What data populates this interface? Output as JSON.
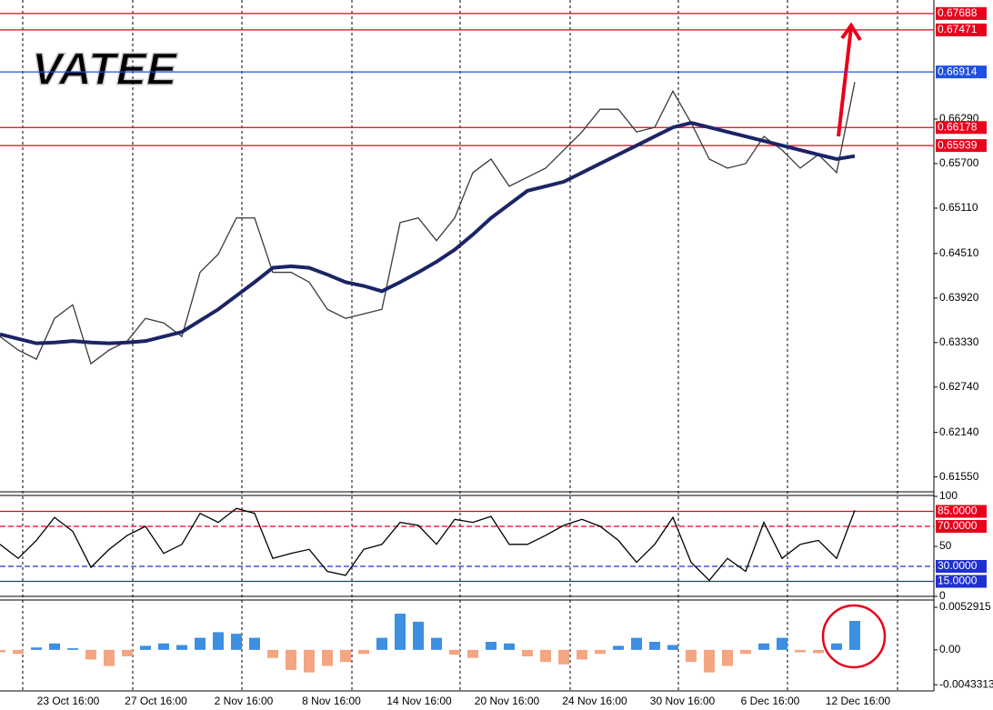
{
  "watermark": "VATEE",
  "chart_data": [
    {
      "type": "line",
      "series": [
        {
          "color": "#3a3a3a",
          "values": [
            0.6341,
            0.6323,
            0.6311,
            0.6365,
            0.6383,
            0.6305,
            0.6323,
            0.6335,
            0.6365,
            0.6359,
            0.6341,
            0.6426,
            0.645,
            0.6498,
            0.6498,
            0.6426,
            0.6426,
            0.6413,
            0.6377,
            0.6365,
            0.6371,
            0.6377,
            0.6492,
            0.6498,
            0.6468,
            0.6498,
            0.6558,
            0.6576,
            0.654,
            0.6552,
            0.6564,
            0.6588,
            0.6612,
            0.6642,
            0.6642,
            0.6612,
            0.6618,
            0.6666,
            0.6624,
            0.6576,
            0.6564,
            0.657,
            0.6606,
            0.6588,
            0.6564,
            0.6582,
            0.6558,
            0.6678
          ]
        },
        {
          "color": "#1c2466",
          "values": [
            0.6344,
            0.6338,
            0.6332,
            0.6333,
            0.6335,
            0.6333,
            0.6332,
            0.6333,
            0.6335,
            0.6341,
            0.6347,
            0.6362,
            0.6377,
            0.6395,
            0.6413,
            0.6432,
            0.6434,
            0.6432,
            0.6423,
            0.6413,
            0.6408,
            0.6401,
            0.6413,
            0.6426,
            0.644,
            0.6456,
            0.6476,
            0.6498,
            0.6516,
            0.6534,
            0.654,
            0.6546,
            0.6558,
            0.657,
            0.6582,
            0.6594,
            0.6606,
            0.6618,
            0.6624,
            0.6618,
            0.6612,
            0.6606,
            0.66,
            0.6594,
            0.6588,
            0.6582,
            0.6576,
            0.658
          ]
        }
      ],
      "ylim": [
        0.61365,
        0.67867
      ],
      "yticks": [
        {
          "value": 0.6629,
          "label": "0.66290"
        },
        {
          "value": 0.657,
          "label": "0.65700"
        },
        {
          "value": 0.6511,
          "label": "0.65110"
        },
        {
          "value": 0.6451,
          "label": "0.64510"
        },
        {
          "value": 0.6392,
          "label": "0.63920"
        },
        {
          "value": 0.6333,
          "label": "0.63330"
        },
        {
          "value": 0.6274,
          "label": "0.62740"
        },
        {
          "value": 0.6214,
          "label": "0.62140"
        },
        {
          "value": 0.6155,
          "label": "0.61550"
        }
      ],
      "levels": [
        {
          "value": 0.67688,
          "color": "#e8001c",
          "dashed": false
        },
        {
          "value": 0.67471,
          "color": "#e8001c",
          "dashed": false
        },
        {
          "value": 0.66914,
          "color": "#2050e0",
          "dashed": false
        },
        {
          "value": 0.66178,
          "color": "#e8001c",
          "dashed": false
        },
        {
          "value": 0.65939,
          "color": "#e8001c",
          "dashed": false
        }
      ]
    },
    {
      "type": "line",
      "series": [
        {
          "color": "#000000",
          "values": [
            52,
            38,
            56,
            79,
            65,
            29,
            47,
            61,
            70,
            43,
            52,
            83,
            74,
            88,
            83,
            38,
            43,
            47,
            25,
            21,
            47,
            52,
            74,
            71,
            52,
            77,
            74,
            80,
            52,
            52,
            61,
            71,
            77,
            70,
            56,
            34,
            52,
            79,
            34,
            16,
            38,
            25,
            74,
            38,
            52,
            56,
            38,
            86
          ]
        }
      ],
      "ylim": [
        0,
        100
      ],
      "yticks": [
        100,
        50,
        0
      ],
      "levels": [
        {
          "value": {
            "value": 85,
            "label": "85.0000"
          },
          "color": "#e8001c",
          "dashed": false
        },
        {
          "value": {
            "value": 70,
            "label": "70.0000"
          },
          "color": "#e8001c",
          "dashed": true
        },
        {
          "value": {
            "value": 30,
            "label": "30.0000"
          },
          "color": "#2030d0",
          "dashed": true
        },
        {
          "value": {
            "value": 15,
            "label": "15.0000"
          },
          "color": "#2030d0",
          "dashed": false
        }
      ]
    },
    {
      "type": "bar",
      "values": [
        -0.0003,
        -0.0005,
        0.0003,
        0.0008,
        0.0002,
        -0.0012,
        -0.002,
        -0.0008,
        0.0005,
        0.0008,
        0.0006,
        0.0015,
        0.0022,
        0.002,
        0.0015,
        -0.001,
        -0.0025,
        -0.0028,
        -0.002,
        -0.0015,
        -0.0005,
        0.0015,
        0.0045,
        0.0035,
        0.0015,
        -0.0006,
        -0.001,
        0.001,
        0.0008,
        -0.0008,
        -0.0015,
        -0.0018,
        -0.0012,
        -0.0005,
        0.0005,
        0.0015,
        0.001,
        0.0006,
        -0.0015,
        -0.0028,
        -0.002,
        -0.0005,
        0.0008,
        0.0015,
        -0.0003,
        -0.0004,
        0.0008,
        0.0036
      ],
      "color": "#3d8fe0",
      "negative_color": "#f4a582",
      "ylim": [
        -0.0051,
        0.0062
      ],
      "yticks": [
        0.0052915,
        {
          "value": 0,
          "label": "0.00"
        },
        -0.0043313
      ],
      "x_tick_labels": [
        "23 Oct 16:00",
        "27 Oct 16:00",
        "2 Nov 16:00",
        "8 Nov 16:00",
        "14 Nov 16:00",
        "20 Nov 16:00",
        "24 Nov 16:00",
        "30 Nov 16:00",
        "6 Dec 16:00",
        "12 Dec 16:00"
      ]
    }
  ]
}
